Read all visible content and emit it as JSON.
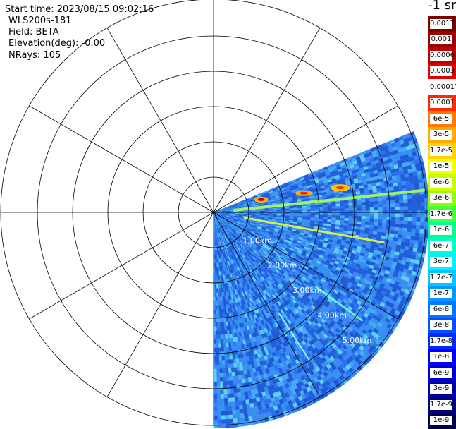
{
  "info": {
    "start_time": "Start time: 2023/08/15 09:02:16",
    "instrument": "WLS200s-181",
    "field": "Field: BETA",
    "elevation": "Elevation(deg): -0.00",
    "nrays": "NRays: 105"
  },
  "plot": {
    "range_rings_km": [
      1,
      2,
      3,
      4,
      5
    ],
    "range_labels": [
      "1.00km",
      "2.00km",
      "3.00km",
      "4.00km",
      "5.00km"
    ],
    "azimuth_spokes_deg": [
      0,
      30,
      60,
      90,
      120,
      150,
      180,
      210,
      240,
      270,
      300,
      330
    ],
    "scan_sector_deg": [
      68,
      180
    ],
    "colors": {
      "background": "#ffffff",
      "grid": "#000000",
      "range_label": "#ffffff",
      "data_base": "#2f6ee8"
    }
  },
  "colorbar": {
    "unit_label": "-1 sr",
    "levels": [
      {
        "label": "0.0017",
        "color": "#7a0000"
      },
      {
        "label": "0.001",
        "color": "#9a0000"
      },
      {
        "label": "0.0006",
        "color": "#bf0000"
      },
      {
        "label": "0.0003",
        "color": "#e30000"
      },
      {
        "label": "0.00017",
        "color": "#ffffff"
      },
      {
        "label": "0.0001",
        "color": "#ff2a00"
      },
      {
        "label": "6e-5",
        "color": "#ff7a00"
      },
      {
        "label": "3e-5",
        "color": "#ffaa00"
      },
      {
        "label": "1.7e-5",
        "color": "#ffd400"
      },
      {
        "label": "1e-5",
        "color": "#f2ff00"
      },
      {
        "label": "6e-6",
        "color": "#c8ff00"
      },
      {
        "label": "3e-6",
        "color": "#8cff00"
      },
      {
        "label": "1.7e-6",
        "color": "#46ff3c"
      },
      {
        "label": "1e-6",
        "color": "#00ff8c"
      },
      {
        "label": "6e-7",
        "color": "#00ffc8"
      },
      {
        "label": "3e-7",
        "color": "#00f0ff"
      },
      {
        "label": "1.7e-7",
        "color": "#00c8ff"
      },
      {
        "label": "1e-7",
        "color": "#009bff"
      },
      {
        "label": "6e-8",
        "color": "#0073ff"
      },
      {
        "label": "3e-8",
        "color": "#0050ff"
      },
      {
        "label": "1.7e-8",
        "color": "#0028ff"
      },
      {
        "label": "1e-8",
        "color": "#0000ff"
      },
      {
        "label": "6e-9",
        "color": "#0000d2"
      },
      {
        "label": "3e-9",
        "color": "#0000a5"
      },
      {
        "label": "1.7e-9",
        "color": "#000078"
      },
      {
        "label": "1e-9",
        "color": "#00004b"
      }
    ]
  }
}
